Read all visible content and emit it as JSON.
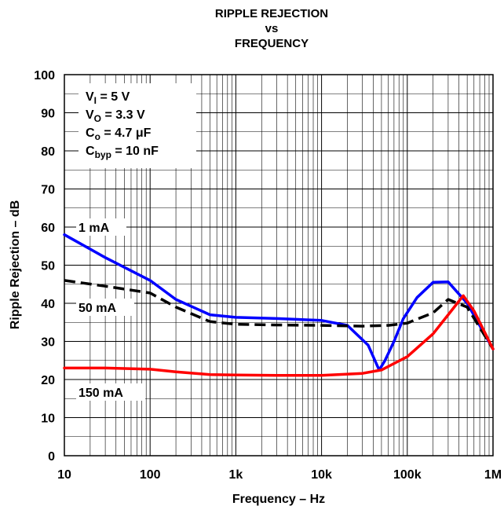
{
  "chart_data": {
    "type": "line",
    "title_lines": [
      "RIPPLE REJECTION",
      "vs",
      "FREQUENCY"
    ],
    "xlabel": "Frequency – Hz",
    "ylabel": "Ripple Rejection – dB",
    "x_scale": "log",
    "xlim": [
      10,
      1000000
    ],
    "ylim": [
      0,
      100
    ],
    "x_ticks": [
      {
        "value": 10,
        "label": "10"
      },
      {
        "value": 100,
        "label": "100"
      },
      {
        "value": 1000,
        "label": "1k"
      },
      {
        "value": 10000,
        "label": "10k"
      },
      {
        "value": 100000,
        "label": "100k"
      },
      {
        "value": 1000000,
        "label": "1M"
      }
    ],
    "y_ticks": [
      {
        "value": 0,
        "label": "0"
      },
      {
        "value": 10,
        "label": "10"
      },
      {
        "value": 20,
        "label": "20"
      },
      {
        "value": 30,
        "label": "30"
      },
      {
        "value": 40,
        "label": "40"
      },
      {
        "value": 50,
        "label": "50"
      },
      {
        "value": 60,
        "label": "60"
      },
      {
        "value": 70,
        "label": "70"
      },
      {
        "value": 80,
        "label": "80"
      },
      {
        "value": 90,
        "label": "90"
      },
      {
        "value": 100,
        "label": "100"
      }
    ],
    "grid": true,
    "conditions": [
      {
        "main": "V",
        "sub": "I",
        "rest": " = 5 V"
      },
      {
        "main": "V",
        "sub": "O",
        "rest": " = 3.3 V"
      },
      {
        "main": "C",
        "sub": "o",
        "rest": " = 4.7 μF"
      },
      {
        "main": "C",
        "sub": "byp",
        "rest": " = 10 nF"
      }
    ],
    "series": [
      {
        "name": "1 mA",
        "color": "#0000ff",
        "dash": "solid",
        "x": [
          10,
          30,
          100,
          200,
          500,
          1000,
          3000,
          10000,
          20000,
          35000,
          47000,
          55000,
          70000,
          90000,
          130000,
          200000,
          300000,
          500000,
          1000000
        ],
        "y": [
          58,
          52,
          46,
          41,
          37,
          36.3,
          36,
          35.5,
          34.2,
          29,
          22.5,
          25,
          30,
          36,
          41.5,
          45.5,
          45.6,
          40,
          28
        ]
      },
      {
        "name": "50 mA",
        "color": "#000000",
        "dash": "dashed",
        "x": [
          10,
          30,
          100,
          200,
          500,
          1000,
          3000,
          10000,
          30000,
          60000,
          100000,
          200000,
          300000,
          500000,
          1000000
        ],
        "y": [
          46,
          44.5,
          42.7,
          39,
          35.2,
          34.5,
          34.3,
          34.2,
          34,
          34.2,
          34.8,
          37.5,
          41,
          39,
          28
        ]
      },
      {
        "name": "150 mA",
        "color": "#ff0000",
        "dash": "solid",
        "x": [
          10,
          30,
          100,
          200,
          500,
          1000,
          3000,
          10000,
          30000,
          50000,
          100000,
          200000,
          300000,
          450000,
          600000,
          1000000
        ],
        "y": [
          23,
          23,
          22.7,
          22,
          21.3,
          21.2,
          21.1,
          21.1,
          21.6,
          22.5,
          26,
          32,
          37,
          42,
          38,
          28
        ]
      }
    ]
  }
}
